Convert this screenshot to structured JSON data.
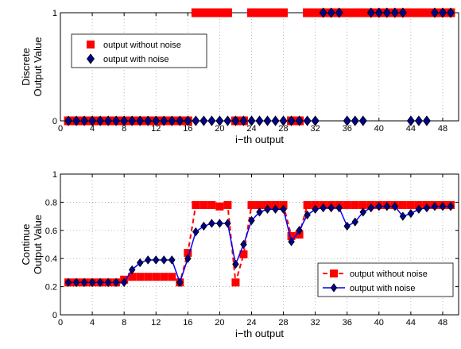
{
  "chart_data": [
    {
      "type": "scatter",
      "title": "",
      "xlabel": "i−th output",
      "ylabel": "Discrete",
      "ylabel2": "Output Value",
      "xlim": [
        0,
        50
      ],
      "ylim": [
        0,
        1
      ],
      "xticks": [
        0,
        4,
        8,
        12,
        16,
        20,
        24,
        28,
        32,
        36,
        40,
        44,
        48
      ],
      "yticks": [
        0,
        1
      ],
      "grid": true,
      "legend_position": "upper-left",
      "series": [
        {
          "name": "output without noise",
          "marker": "square",
          "color": "#ff0000",
          "x": [
            1,
            2,
            3,
            4,
            5,
            6,
            7,
            8,
            9,
            10,
            11,
            12,
            13,
            14,
            15,
            16,
            17,
            18,
            19,
            20,
            21,
            22,
            23,
            24,
            25,
            26,
            27,
            28,
            29,
            30,
            31,
            32,
            33,
            34,
            35,
            36,
            37,
            38,
            39,
            40,
            41,
            42,
            43,
            44,
            45,
            46,
            47,
            48,
            49
          ],
          "y": [
            0,
            0,
            0,
            0,
            0,
            0,
            0,
            0,
            0,
            0,
            0,
            0,
            0,
            0,
            0,
            0,
            1,
            1,
            1,
            1,
            1,
            0,
            0,
            1,
            1,
            1,
            1,
            1,
            0,
            0,
            1,
            1,
            1,
            1,
            1,
            1,
            1,
            1,
            1,
            1,
            1,
            1,
            1,
            1,
            1,
            1,
            1,
            1,
            1
          ]
        },
        {
          "name": "output with noise",
          "marker": "diamond",
          "color": "#00008b",
          "x": [
            1,
            2,
            3,
            4,
            5,
            6,
            7,
            8,
            9,
            10,
            11,
            12,
            13,
            14,
            15,
            16,
            17,
            18,
            19,
            20,
            21,
            22,
            23,
            24,
            25,
            26,
            27,
            28,
            29,
            30,
            31,
            32,
            33,
            34,
            35,
            36,
            37,
            38,
            39,
            40,
            41,
            42,
            43,
            44,
            45,
            46,
            47,
            48,
            49
          ],
          "y": [
            0,
            0,
            0,
            0,
            0,
            0,
            0,
            0,
            0,
            0,
            0,
            0,
            0,
            0,
            0,
            0,
            0,
            0,
            0,
            0,
            0,
            0,
            0,
            0,
            0,
            0,
            0,
            0,
            0,
            0,
            0,
            0,
            1,
            1,
            1,
            0,
            0,
            0,
            1,
            1,
            1,
            1,
            1,
            0,
            0,
            0,
            1,
            1,
            1
          ]
        }
      ]
    },
    {
      "type": "line",
      "title": "",
      "xlabel": "i−th output",
      "ylabel": "Continue",
      "ylabel2": "Output Value",
      "xlim": [
        0,
        50
      ],
      "ylim": [
        0,
        1
      ],
      "xticks": [
        0,
        4,
        8,
        12,
        16,
        20,
        24,
        28,
        32,
        36,
        40,
        44,
        48
      ],
      "yticks": [
        0,
        0.2,
        0.4,
        0.6,
        0.8,
        1
      ],
      "grid": true,
      "legend_position": "lower-right",
      "series": [
        {
          "name": "output without noise",
          "style": "dashed-square",
          "color": "#ff0000",
          "x": [
            1,
            2,
            3,
            4,
            5,
            6,
            7,
            8,
            9,
            10,
            11,
            12,
            13,
            14,
            15,
            16,
            17,
            18,
            19,
            20,
            21,
            22,
            23,
            24,
            25,
            26,
            27,
            28,
            29,
            30,
            31,
            32,
            33,
            34,
            35,
            36,
            37,
            38,
            39,
            40,
            41,
            42,
            43,
            44,
            45,
            46,
            47,
            48,
            49
          ],
          "y": [
            0.23,
            0.23,
            0.23,
            0.23,
            0.23,
            0.23,
            0.23,
            0.25,
            0.27,
            0.27,
            0.27,
            0.27,
            0.27,
            0.27,
            0.23,
            0.44,
            0.78,
            0.78,
            0.78,
            0.77,
            0.78,
            0.23,
            0.43,
            0.78,
            0.78,
            0.78,
            0.78,
            0.78,
            0.56,
            0.57,
            0.78,
            0.78,
            0.78,
            0.78,
            0.78,
            0.78,
            0.78,
            0.78,
            0.78,
            0.78,
            0.78,
            0.78,
            0.78,
            0.78,
            0.78,
            0.78,
            0.78,
            0.78,
            0.78
          ]
        },
        {
          "name": "output with noise",
          "style": "solid-diamond",
          "color": "#00008b",
          "x": [
            1,
            2,
            3,
            4,
            5,
            6,
            7,
            8,
            9,
            10,
            11,
            12,
            13,
            14,
            15,
            16,
            17,
            18,
            19,
            20,
            21,
            22,
            23,
            24,
            25,
            26,
            27,
            28,
            29,
            30,
            31,
            32,
            33,
            34,
            35,
            36,
            37,
            38,
            39,
            40,
            41,
            42,
            43,
            44,
            45,
            46,
            47,
            48,
            49
          ],
          "y": [
            0.23,
            0.23,
            0.23,
            0.23,
            0.23,
            0.23,
            0.23,
            0.23,
            0.32,
            0.37,
            0.39,
            0.39,
            0.39,
            0.39,
            0.23,
            0.4,
            0.59,
            0.63,
            0.65,
            0.65,
            0.65,
            0.36,
            0.5,
            0.67,
            0.73,
            0.75,
            0.75,
            0.75,
            0.52,
            0.6,
            0.71,
            0.75,
            0.76,
            0.76,
            0.76,
            0.63,
            0.66,
            0.73,
            0.76,
            0.77,
            0.77,
            0.77,
            0.7,
            0.72,
            0.75,
            0.76,
            0.77,
            0.77,
            0.77
          ]
        }
      ]
    }
  ]
}
